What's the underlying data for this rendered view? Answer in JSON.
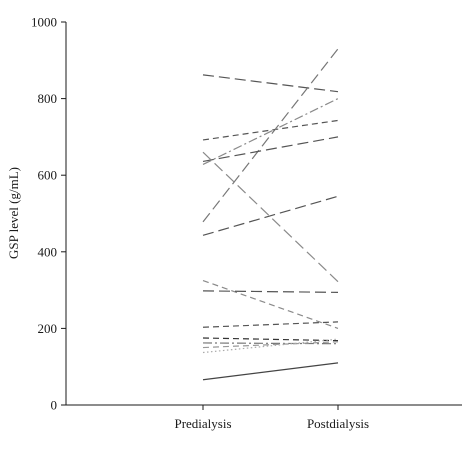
{
  "chart_data": {
    "type": "line",
    "title": "",
    "xlabel": "",
    "ylabel": "GSP level (g/mL)",
    "categories": [
      "Predialysis",
      "Postdialysis"
    ],
    "ylim": [
      0,
      1000
    ],
    "yticks": [
      0,
      200,
      400,
      600,
      800,
      1000
    ],
    "grid": false,
    "legend": "none",
    "series": [
      {
        "values": [
          862,
          818
        ],
        "dash": "long-dash",
        "color": "#555555"
      },
      {
        "values": [
          478,
          930
        ],
        "dash": "long-dash",
        "color": "#777777"
      },
      {
        "values": [
          692,
          743
        ],
        "dash": "dash",
        "color": "#555555"
      },
      {
        "values": [
          636,
          700
        ],
        "dash": "long-dash",
        "color": "#555555"
      },
      {
        "values": [
          628,
          800
        ],
        "dash": "dash-dot",
        "color": "#8a8a8a"
      },
      {
        "values": [
          660,
          322
        ],
        "dash": "long-dash",
        "color": "#8a8a8a"
      },
      {
        "values": [
          443,
          545
        ],
        "dash": "long-dash",
        "color": "#555555"
      },
      {
        "values": [
          325,
          200
        ],
        "dash": "dash",
        "color": "#8a8a8a"
      },
      {
        "values": [
          298,
          294
        ],
        "dash": "long-dash",
        "color": "#555555"
      },
      {
        "values": [
          203,
          217
        ],
        "dash": "dash",
        "color": "#555555"
      },
      {
        "values": [
          175,
          168
        ],
        "dash": "dash",
        "color": "#333333"
      },
      {
        "values": [
          162,
          160
        ],
        "dash": "dash-dot",
        "color": "#777777"
      },
      {
        "values": [
          150,
          165
        ],
        "dash": "dash",
        "color": "#999999"
      },
      {
        "values": [
          137,
          172
        ],
        "dash": "dot",
        "color": "#aaaaaa"
      },
      {
        "values": [
          66,
          110
        ],
        "dash": "solid",
        "color": "#444444"
      }
    ]
  }
}
